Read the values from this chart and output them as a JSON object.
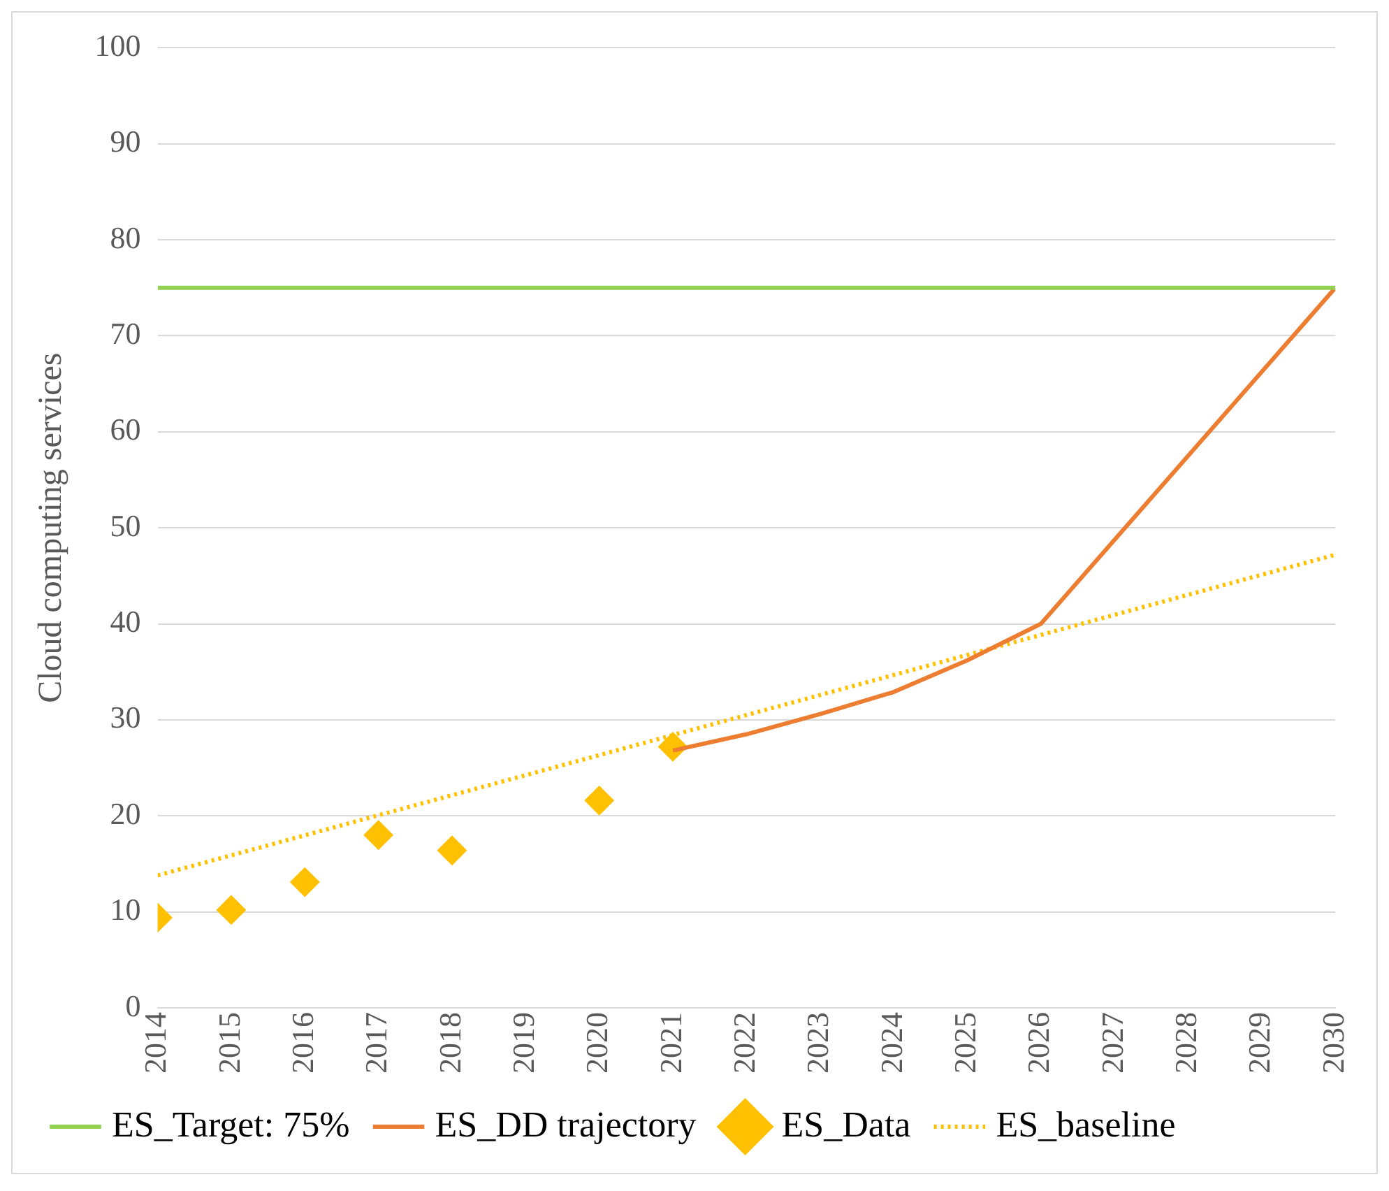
{
  "chart_data": {
    "type": "line",
    "ylabel": "Cloud computing services",
    "xlim": [
      2014,
      2030
    ],
    "xticks": [
      2014,
      2015,
      2016,
      2017,
      2018,
      2019,
      2020,
      2021,
      2022,
      2023,
      2024,
      2025,
      2026,
      2027,
      2028,
      2029,
      2030
    ],
    "ylim": [
      0,
      100
    ],
    "yticks": [
      0,
      10,
      20,
      30,
      40,
      50,
      60,
      70,
      80,
      90,
      100
    ],
    "grid": "y",
    "legend": "bottom",
    "series": [
      {
        "name": "ES_Target: 75%",
        "color": "#92d050",
        "x": [
          2014,
          2030
        ],
        "values": [
          75,
          75
        ],
        "marker": "none",
        "line_style": "solid"
      },
      {
        "name": "ES_DD trajectory",
        "color": "#ed7d31",
        "x": [
          2021,
          2022,
          2023,
          2024,
          2025,
          2026,
          2030
        ],
        "values": [
          26.8,
          28.5,
          30.6,
          32.9,
          36.2,
          40,
          75
        ],
        "marker": "none",
        "line_style": "solid"
      },
      {
        "name": "ES_Data",
        "type": "scatter",
        "color": "#ffc000",
        "x": [
          2014,
          2015,
          2016,
          2017,
          2018,
          2020,
          2021
        ],
        "values": [
          9.4,
          10.2,
          13.1,
          18,
          16.4,
          21.6,
          27.2
        ],
        "marker": "diamond"
      },
      {
        "name": "ES_baseline",
        "color": "#ffc000",
        "x": [
          2014,
          2030
        ],
        "values": [
          13.8,
          47.2
        ],
        "marker": "none",
        "line_style": "dotted"
      }
    ]
  }
}
